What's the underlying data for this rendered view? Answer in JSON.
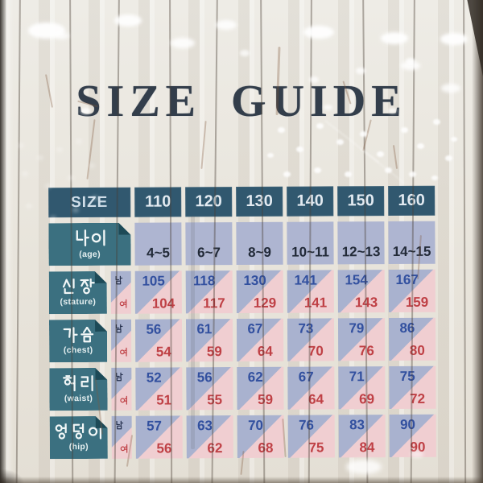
{
  "poster": {
    "title": "SIZE GUIDE"
  },
  "table": {
    "header": {
      "label": "SIZE",
      "sizes": [
        "110",
        "120",
        "130",
        "140",
        "150",
        "160"
      ]
    },
    "age_row": {
      "label": "나이",
      "sublabel": "(age)",
      "values": [
        "4~5",
        "6~7",
        "8~9",
        "10~11",
        "12~13",
        "14~15"
      ]
    },
    "gender": {
      "male": "남",
      "female": "여"
    },
    "rows": [
      {
        "label": "신장",
        "sublabel": "(stature)",
        "male": [
          "105",
          "118",
          "130",
          "141",
          "154",
          "167"
        ],
        "female": [
          "104",
          "117",
          "129",
          "141",
          "143",
          "159"
        ]
      },
      {
        "label": "가슴",
        "sublabel": "(chest)",
        "male": [
          "56",
          "61",
          "67",
          "73",
          "79",
          "86"
        ],
        "female": [
          "54",
          "59",
          "64",
          "70",
          "76",
          "80"
        ]
      },
      {
        "label": "허리",
        "sublabel": "(waist)",
        "male": [
          "52",
          "56",
          "62",
          "67",
          "71",
          "75"
        ],
        "female": [
          "51",
          "55",
          "59",
          "64",
          "69",
          "72"
        ]
      },
      {
        "label": "엉덩이",
        "sublabel": "(hip)",
        "male": [
          "57",
          "63",
          "70",
          "76",
          "83",
          "90"
        ],
        "female": [
          "56",
          "62",
          "68",
          "75",
          "84",
          "90"
        ]
      }
    ]
  },
  "colors": {
    "header_blue": "#31586f",
    "label_teal": "#3b7080",
    "fold_dark_teal": "#1d4a57",
    "cell_blue": "#a9b2cf",
    "cell_pink": "#f0ced1",
    "age_cell": "#aeb5d1",
    "male_text": "#32509f",
    "female_text": "#bf4045",
    "title_ink": "#333e4b"
  }
}
